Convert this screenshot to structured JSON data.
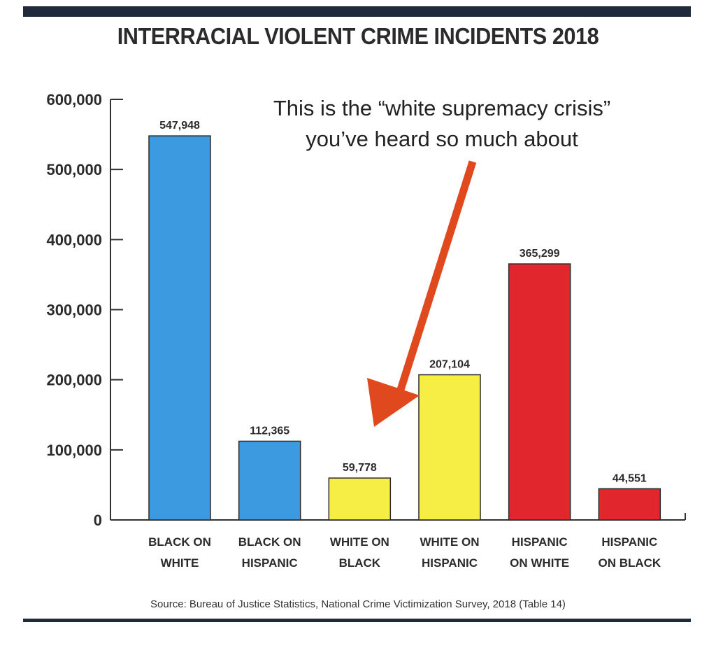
{
  "chart_data": {
    "type": "bar",
    "title": "INTERRACIAL VIOLENT CRIME INCIDENTS 2018",
    "categories": [
      [
        "BLACK ON",
        "WHITE"
      ],
      [
        "BLACK ON",
        "HISPANIC"
      ],
      [
        "WHITE ON",
        "BLACK"
      ],
      [
        "WHITE ON",
        "HISPANIC"
      ],
      [
        "HISPANIC",
        "ON WHITE"
      ],
      [
        "HISPANIC",
        "ON BLACK"
      ]
    ],
    "values": [
      547948,
      112365,
      59778,
      207104,
      365299,
      44551
    ],
    "value_labels": [
      "547,948",
      "112,365",
      "59,778",
      "207,104",
      "365,299",
      "44,551"
    ],
    "colors": [
      "#3c9ae0",
      "#3c9ae0",
      "#f7ee45",
      "#f7ee45",
      "#e1272d",
      "#e1272d"
    ],
    "ylim": [
      0,
      600000
    ],
    "yticks": [
      0,
      100000,
      200000,
      300000,
      400000,
      500000,
      600000
    ],
    "ytick_labels": [
      "0",
      "100,000",
      "200,000",
      "300,000",
      "400,000",
      "500,000",
      "600,000"
    ],
    "grid": false,
    "annotation": {
      "lines": [
        "This is the “white supremacy crisis”",
        "you’ve heard so much about"
      ],
      "arrow_color": "#e0481e"
    },
    "source": "Source: Bureau of Justice Statistics, National Crime Victimization Survey, 2018 (Table 14)"
  }
}
